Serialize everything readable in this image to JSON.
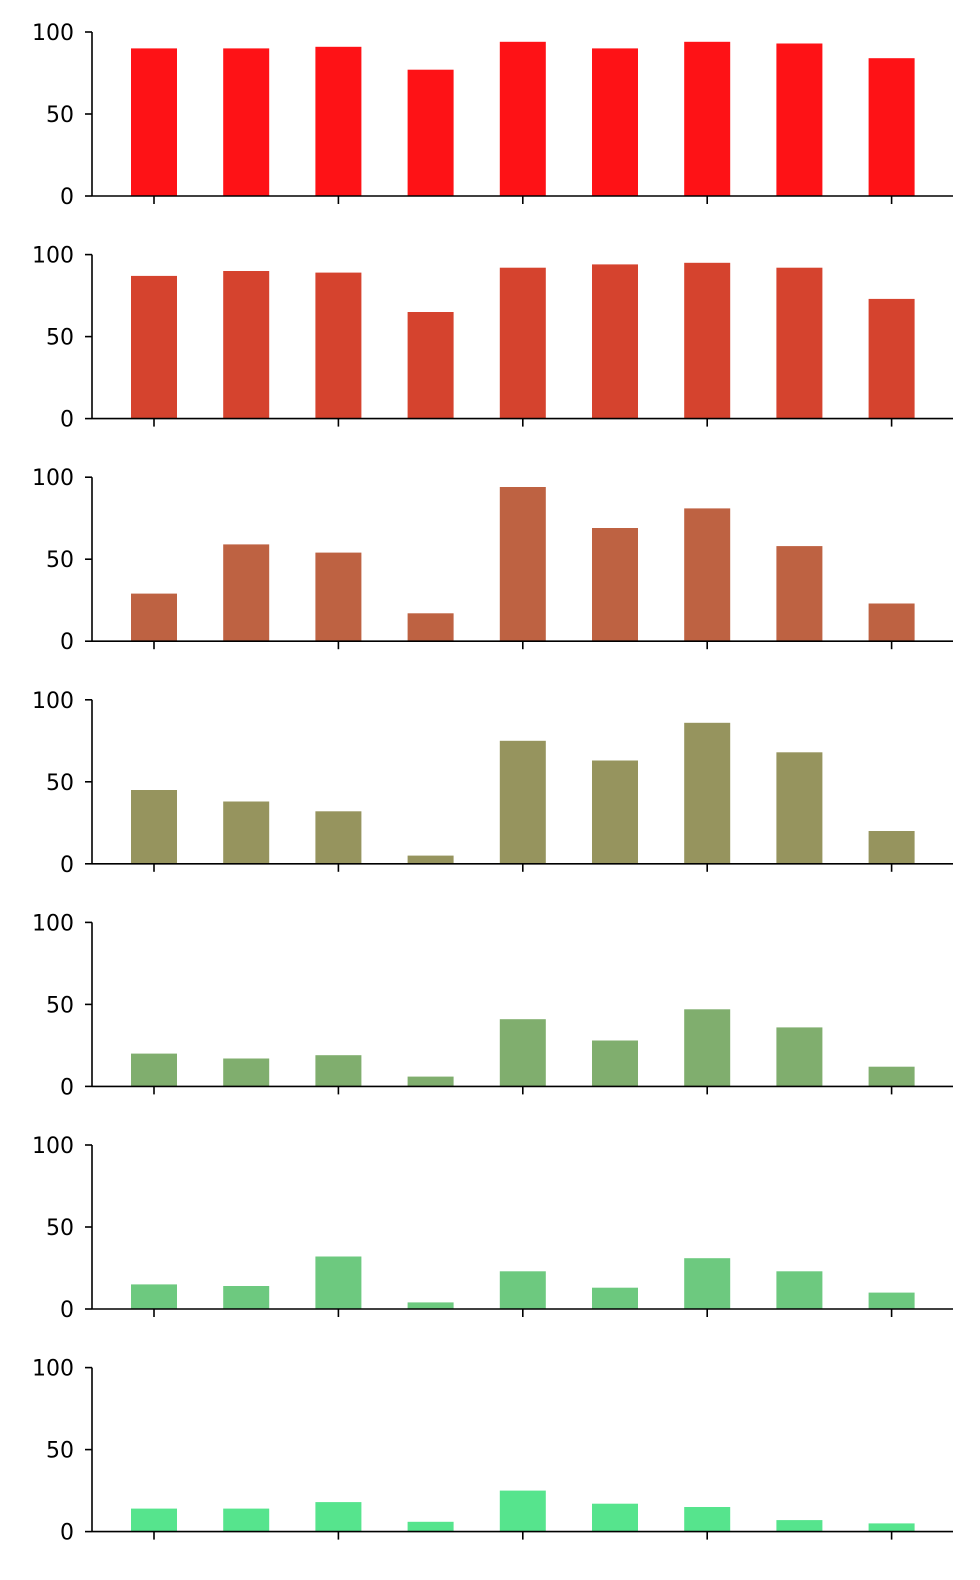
{
  "chart_data": [
    {
      "type": "bar",
      "color": "#fe1216",
      "ylim": [
        0,
        100
      ],
      "yticks": [
        0,
        50,
        100
      ],
      "values": [
        90,
        90,
        91,
        77,
        94,
        90,
        94,
        93,
        84
      ]
    },
    {
      "type": "bar",
      "color": "#d5432e",
      "ylim": [
        0,
        100
      ],
      "yticks": [
        0,
        50,
        100
      ],
      "values": [
        87,
        90,
        89,
        65,
        92,
        94,
        95,
        92,
        73
      ]
    },
    {
      "type": "bar",
      "color": "#be6242",
      "ylim": [
        0,
        100
      ],
      "yticks": [
        0,
        50,
        100
      ],
      "values": [
        29,
        59,
        54,
        17,
        94,
        69,
        81,
        58,
        23
      ]
    },
    {
      "type": "bar",
      "color": "#96945e",
      "ylim": [
        0,
        100
      ],
      "yticks": [
        0,
        50,
        100
      ],
      "values": [
        45,
        38,
        32,
        5,
        75,
        63,
        86,
        68,
        20
      ]
    },
    {
      "type": "bar",
      "color": "#80ae6e",
      "ylim": [
        0,
        100
      ],
      "yticks": [
        0,
        50,
        100
      ],
      "values": [
        20,
        17,
        19,
        6,
        41,
        28,
        47,
        36,
        12
      ]
    },
    {
      "type": "bar",
      "color": "#6dc97f",
      "ylim": [
        0,
        100
      ],
      "yticks": [
        0,
        50,
        100
      ],
      "values": [
        15,
        14,
        32,
        4,
        23,
        13,
        31,
        23,
        10
      ]
    },
    {
      "type": "bar",
      "color": "#56e48d",
      "ylim": [
        0,
        100
      ],
      "yticks": [
        0,
        50,
        100
      ],
      "values": [
        14,
        14,
        18,
        6,
        25,
        17,
        15,
        7,
        5
      ]
    }
  ]
}
